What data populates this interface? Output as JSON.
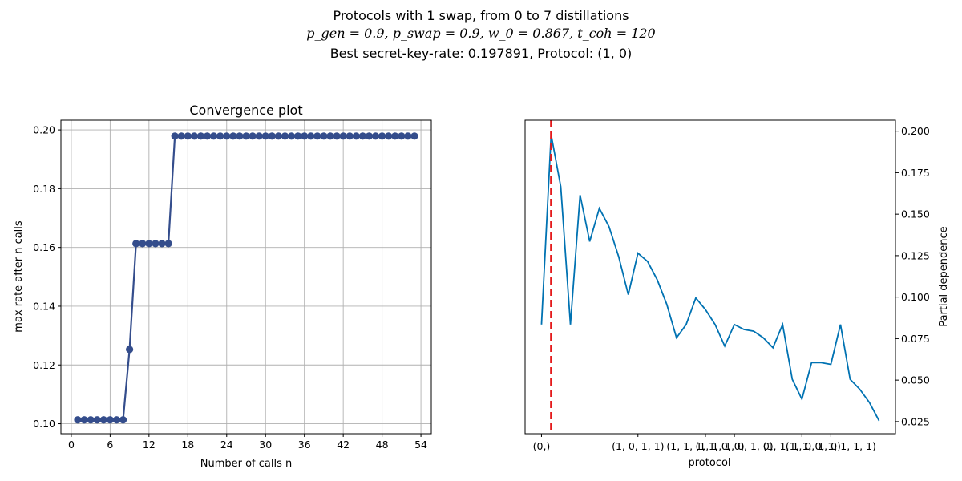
{
  "suptitle": {
    "line1": "Protocols with 1 swap, from 0 to 7 distillations",
    "line2": "p_gen = 0.9, p_swap = 0.9, w_0 = 0.867, t_coh = 120",
    "line3": "Best secret-key-rate: 0.197891, Protocol: (1, 0)"
  },
  "colors": {
    "convergence": "#344d8c",
    "dependence": "#0072b2",
    "best_line": "#e41a1c",
    "grid": "#b0b0b0"
  },
  "chart_data": [
    {
      "type": "line",
      "title": "Convergence plot",
      "xlabel": "Number of calls n",
      "ylabel": "max rate after n calls",
      "xlim": [
        -1.6,
        55.6
      ],
      "ylim": [
        0.0966,
        0.2033
      ],
      "xticks": [
        0,
        6,
        12,
        18,
        24,
        30,
        36,
        42,
        48,
        54
      ],
      "yticks": [
        0.1,
        0.12,
        0.14,
        0.16,
        0.18,
        0.2
      ],
      "ytick_labels": [
        "0.10",
        "0.12",
        "0.14",
        "0.16",
        "0.18",
        "0.20"
      ],
      "grid": true,
      "x": [
        1,
        2,
        3,
        4,
        5,
        6,
        7,
        8,
        9,
        10,
        11,
        12,
        13,
        14,
        15,
        16,
        17,
        18,
        19,
        20,
        21,
        22,
        23,
        24,
        25,
        26,
        27,
        28,
        29,
        30,
        31,
        32,
        33,
        34,
        35,
        36,
        37,
        38,
        39,
        40,
        41,
        42,
        43,
        44,
        45,
        46,
        47,
        48,
        49,
        50,
        51,
        52,
        53
      ],
      "y": [
        0.1013,
        0.1013,
        0.1013,
        0.1013,
        0.1013,
        0.1013,
        0.1013,
        0.1013,
        0.1253,
        0.1613,
        0.1613,
        0.1613,
        0.1613,
        0.1613,
        0.1613,
        0.1979,
        0.1979,
        0.1979,
        0.1979,
        0.1979,
        0.1979,
        0.1979,
        0.1979,
        0.1979,
        0.1979,
        0.1979,
        0.1979,
        0.1979,
        0.1979,
        0.1979,
        0.1979,
        0.1979,
        0.1979,
        0.1979,
        0.1979,
        0.1979,
        0.1979,
        0.1979,
        0.1979,
        0.1979,
        0.1979,
        0.1979,
        0.1979,
        0.1979,
        0.1979,
        0.1979,
        0.1979,
        0.1979,
        0.1979,
        0.1979,
        0.1979,
        0.1979,
        0.1979
      ]
    },
    {
      "type": "line",
      "xlabel": "protocol",
      "ylabel": "Partial dependence",
      "xlim": [
        -1.7,
        36.7
      ],
      "ylim": [
        0.0177,
        0.2066
      ],
      "xticks": [
        0,
        10,
        17,
        20,
        27,
        30
      ],
      "xtick_labels": [
        "(0,)",
        "(1, 0, 1, 1)",
        "(1, 1, 1, 1, 0, 0)",
        "(1, 1, 1, 0, 1, 0)",
        "(1, 1, 1, 0, 1, 0)",
        "(1, 1, 0, 1, 1, 1, 1)"
      ],
      "yticks": [
        0.025,
        0.05,
        0.075,
        0.1,
        0.125,
        0.15,
        0.175,
        0.2
      ],
      "ytick_labels": [
        "0.025",
        "0.050",
        "0.075",
        "0.100",
        "0.125",
        "0.150",
        "0.175",
        "0.200"
      ],
      "best_protocol_x": 1,
      "x": [
        0,
        1,
        2,
        3,
        4,
        5,
        6,
        7,
        8,
        9,
        10,
        11,
        12,
        13,
        14,
        15,
        16,
        17,
        18,
        19,
        20,
        21,
        22,
        23,
        24,
        25,
        26,
        27,
        28,
        29,
        30,
        31,
        32,
        33,
        34,
        35
      ],
      "y": [
        0.0835,
        0.1979,
        0.1665,
        0.0835,
        0.1615,
        0.1335,
        0.1535,
        0.1425,
        0.1245,
        0.1015,
        0.1265,
        0.1215,
        0.1105,
        0.0955,
        0.0755,
        0.0835,
        0.0995,
        0.0925,
        0.0835,
        0.0705,
        0.0835,
        0.0805,
        0.0795,
        0.0755,
        0.0695,
        0.0835,
        0.0505,
        0.0385,
        0.0605,
        0.0605,
        0.0595,
        0.0835,
        0.0505,
        0.0445,
        0.0365,
        0.0255
      ]
    }
  ]
}
